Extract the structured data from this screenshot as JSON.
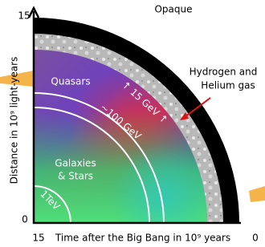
{
  "axes": {
    "y_top": "15",
    "y_bottom": "0",
    "y_label": "Distance in 10⁹ light-years",
    "x_left": "15",
    "x_right": "0",
    "x_label": "Time after the Big Bang in 10⁹ years"
  },
  "regions": {
    "opaque": "Opaque",
    "gas_line1": "Hydrogen and",
    "gas_line2": "Helium gas",
    "quasars": "Quasars",
    "galaxies_line1": "Galaxies",
    "galaxies_line2": "& Stars"
  },
  "thresholds": {
    "gev15": "↑ 15 GeV ↑",
    "gev100": "~100 GeV",
    "tev1": "1TeV"
  }
}
